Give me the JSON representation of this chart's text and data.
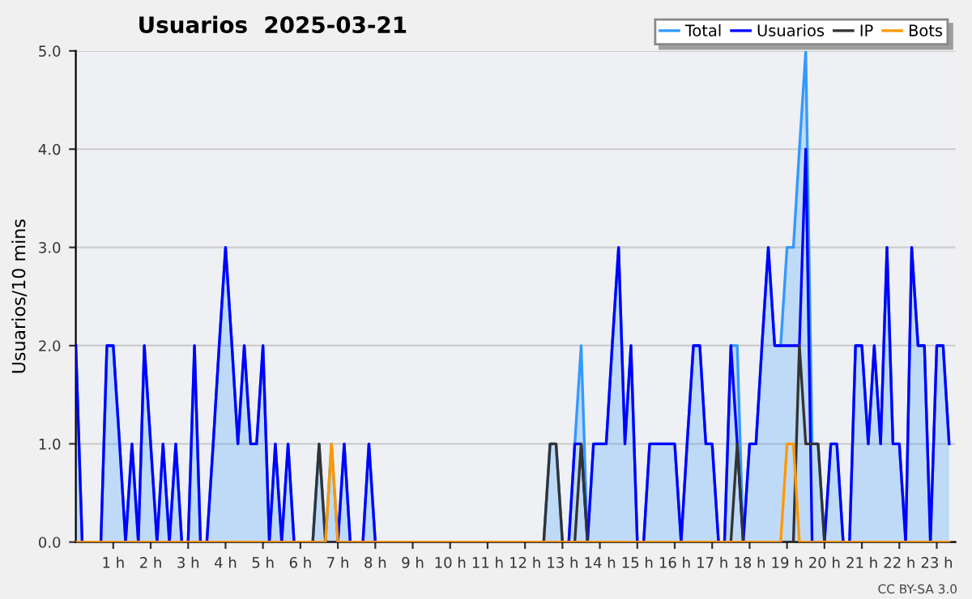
{
  "chart_data": {
    "type": "line",
    "title": "Usuarios  2025-03-21",
    "ylabel": "Usuarios/10 mins",
    "annotations": [
      "CC BY-SA 3.0"
    ],
    "x": [
      0,
      0.17,
      0.33,
      0.5,
      0.67,
      0.83,
      1,
      1.17,
      1.33,
      1.5,
      1.67,
      1.83,
      2,
      2.17,
      2.33,
      2.5,
      2.67,
      2.83,
      3,
      3.17,
      3.33,
      3.5,
      3.67,
      3.83,
      4,
      4.17,
      4.33,
      4.5,
      4.67,
      4.83,
      5,
      5.17,
      5.33,
      5.5,
      5.67,
      5.83,
      6,
      6.17,
      6.33,
      6.5,
      6.67,
      6.83,
      7,
      7.17,
      7.33,
      7.5,
      7.67,
      7.83,
      8,
      8.17,
      8.33,
      8.5,
      8.67,
      8.83,
      9,
      9.17,
      9.33,
      9.5,
      9.67,
      9.83,
      10,
      10.17,
      10.33,
      10.5,
      10.67,
      10.83,
      11,
      11.17,
      11.33,
      11.5,
      11.67,
      11.83,
      12,
      12.17,
      12.33,
      12.5,
      12.67,
      12.83,
      13,
      13.17,
      13.33,
      13.5,
      13.67,
      13.83,
      14,
      14.17,
      14.33,
      14.5,
      14.67,
      14.83,
      15,
      15.17,
      15.33,
      15.5,
      15.67,
      15.83,
      16,
      16.17,
      16.33,
      16.5,
      16.67,
      16.83,
      17,
      17.17,
      17.33,
      17.5,
      17.67,
      17.83,
      18,
      18.17,
      18.33,
      18.5,
      18.67,
      18.83,
      19,
      19.17,
      19.33,
      19.5,
      19.67,
      19.83,
      20,
      20.17,
      20.33,
      20.5,
      20.67,
      20.83,
      21,
      21.17,
      21.33,
      21.5,
      21.67,
      21.83,
      22,
      22.17,
      22.33,
      22.5,
      22.67,
      22.83,
      23,
      23.17,
      23.33
    ],
    "series": [
      {
        "name": "Total",
        "type": "area",
        "color": "#3399ff",
        "values": [
          2,
          0,
          0,
          0,
          0,
          2,
          2,
          1,
          0,
          1,
          0,
          2,
          1,
          0,
          1,
          0,
          1,
          0,
          0,
          2,
          0,
          0,
          1,
          2,
          3,
          2,
          1,
          2,
          1,
          1,
          2,
          0,
          1,
          0,
          1,
          0,
          0,
          0,
          0,
          1,
          0,
          1,
          0,
          1,
          0,
          0,
          0,
          1,
          0,
          0,
          0,
          0,
          0,
          0,
          0,
          0,
          0,
          0,
          0,
          0,
          0,
          0,
          0,
          0,
          0,
          0,
          0,
          0,
          0,
          0,
          0,
          0,
          0,
          0,
          0,
          0,
          1,
          1,
          0,
          0,
          1,
          2,
          0,
          1,
          1,
          1,
          2,
          3,
          1,
          2,
          0,
          0,
          1,
          1,
          1,
          1,
          1,
          0,
          1,
          2,
          2,
          1,
          1,
          0,
          0,
          2,
          2,
          0,
          1,
          1,
          2,
          3,
          2,
          2,
          3,
          3,
          4,
          5,
          1,
          1,
          0,
          1,
          1,
          0,
          0,
          2,
          2,
          1,
          2,
          1,
          3,
          1,
          1,
          0,
          3,
          2,
          2,
          0,
          2,
          2,
          1
        ]
      },
      {
        "name": "Usuarios",
        "color": "#0000ff",
        "values": [
          2,
          0,
          0,
          0,
          0,
          2,
          2,
          1,
          0,
          1,
          0,
          2,
          1,
          0,
          1,
          0,
          1,
          0,
          0,
          2,
          0,
          0,
          1,
          2,
          3,
          2,
          1,
          2,
          1,
          1,
          2,
          0,
          1,
          0,
          1,
          0,
          0,
          0,
          0,
          0,
          0,
          0,
          0,
          1,
          0,
          0,
          0,
          1,
          0,
          0,
          0,
          0,
          0,
          0,
          0,
          0,
          0,
          0,
          0,
          0,
          0,
          0,
          0,
          0,
          0,
          0,
          0,
          0,
          0,
          0,
          0,
          0,
          0,
          0,
          0,
          0,
          0,
          0,
          0,
          0,
          1,
          1,
          0,
          1,
          1,
          1,
          2,
          3,
          1,
          2,
          0,
          0,
          1,
          1,
          1,
          1,
          1,
          0,
          1,
          2,
          2,
          1,
          1,
          0,
          0,
          2,
          1,
          0,
          1,
          1,
          2,
          3,
          2,
          2,
          2,
          2,
          2,
          4,
          0,
          0,
          0,
          1,
          1,
          0,
          0,
          2,
          2,
          1,
          2,
          1,
          3,
          1,
          1,
          0,
          3,
          2,
          2,
          0,
          2,
          2,
          1
        ]
      },
      {
        "name": "IP",
        "color": "#333333",
        "values": [
          0,
          0,
          0,
          0,
          0,
          0,
          0,
          0,
          0,
          0,
          0,
          0,
          0,
          0,
          0,
          0,
          0,
          0,
          0,
          0,
          0,
          0,
          0,
          0,
          0,
          0,
          0,
          0,
          0,
          0,
          0,
          0,
          0,
          0,
          0,
          0,
          0,
          0,
          0,
          1,
          0,
          0,
          0,
          0,
          0,
          0,
          0,
          0,
          0,
          0,
          0,
          0,
          0,
          0,
          0,
          0,
          0,
          0,
          0,
          0,
          0,
          0,
          0,
          0,
          0,
          0,
          0,
          0,
          0,
          0,
          0,
          0,
          0,
          0,
          0,
          0,
          1,
          1,
          0,
          0,
          0,
          1,
          0,
          0,
          0,
          0,
          0,
          0,
          0,
          0,
          0,
          0,
          0,
          0,
          0,
          0,
          0,
          0,
          0,
          0,
          0,
          0,
          0,
          0,
          0,
          0,
          1,
          0,
          0,
          0,
          0,
          0,
          0,
          0,
          0,
          0,
          2,
          1,
          1,
          1,
          0,
          0,
          0,
          0,
          0,
          0,
          0,
          0,
          0,
          0,
          0,
          0,
          0,
          0,
          0,
          0,
          0,
          0,
          0,
          0,
          0
        ]
      },
      {
        "name": "Bots",
        "color": "#ff9900",
        "values": [
          0,
          0,
          0,
          0,
          0,
          0,
          0,
          0,
          0,
          0,
          0,
          0,
          0,
          0,
          0,
          0,
          0,
          0,
          0,
          0,
          0,
          0,
          0,
          0,
          0,
          0,
          0,
          0,
          0,
          0,
          0,
          0,
          0,
          0,
          0,
          0,
          0,
          0,
          0,
          0,
          0,
          1,
          0,
          0,
          0,
          0,
          0,
          0,
          0,
          0,
          0,
          0,
          0,
          0,
          0,
          0,
          0,
          0,
          0,
          0,
          0,
          0,
          0,
          0,
          0,
          0,
          0,
          0,
          0,
          0,
          0,
          0,
          0,
          0,
          0,
          0,
          0,
          0,
          0,
          0,
          0,
          0,
          0,
          0,
          0,
          0,
          0,
          0,
          0,
          0,
          0,
          0,
          0,
          0,
          0,
          0,
          0,
          0,
          0,
          0,
          0,
          0,
          0,
          0,
          0,
          0,
          0,
          0,
          0,
          0,
          0,
          0,
          0,
          0,
          1,
          1,
          0,
          0,
          0,
          0,
          0,
          0,
          0,
          0,
          0,
          0,
          0,
          0,
          0,
          0,
          0,
          0,
          0,
          0,
          0,
          0,
          0,
          0,
          0,
          0,
          0
        ]
      }
    ],
    "xlim": [
      0,
      23.5
    ],
    "xticks": [
      {
        "value": 1,
        "label": "1 h"
      },
      {
        "value": 2,
        "label": "2 h"
      },
      {
        "value": 3,
        "label": "3 h"
      },
      {
        "value": 4,
        "label": "4 h"
      },
      {
        "value": 5,
        "label": "5 h"
      },
      {
        "value": 6,
        "label": "6 h"
      },
      {
        "value": 7,
        "label": "7 h"
      },
      {
        "value": 8,
        "label": "8 h"
      },
      {
        "value": 9,
        "label": "9 h"
      },
      {
        "value": 10,
        "label": "10 h"
      },
      {
        "value": 11,
        "label": "11 h"
      },
      {
        "value": 12,
        "label": "12 h"
      },
      {
        "value": 13,
        "label": "13 h"
      },
      {
        "value": 14,
        "label": "14 h"
      },
      {
        "value": 15,
        "label": "15 h"
      },
      {
        "value": 16,
        "label": "16 h"
      },
      {
        "value": 17,
        "label": "17 h"
      },
      {
        "value": 18,
        "label": "18 h"
      },
      {
        "value": 19,
        "label": "19 h"
      },
      {
        "value": 20,
        "label": "20 h"
      },
      {
        "value": 21,
        "label": "21 h"
      },
      {
        "value": 22,
        "label": "22 h"
      },
      {
        "value": 23,
        "label": "23 h"
      }
    ],
    "ylim": [
      0,
      5
    ],
    "yticks": [
      {
        "value": 0,
        "label": "0.0"
      },
      {
        "value": 1,
        "label": "1.0"
      },
      {
        "value": 2,
        "label": "2.0"
      },
      {
        "value": 3,
        "label": "3.0"
      },
      {
        "value": 4,
        "label": "4.0"
      },
      {
        "value": 5,
        "label": "5.0"
      }
    ],
    "grid": "y",
    "legend": "top right"
  }
}
